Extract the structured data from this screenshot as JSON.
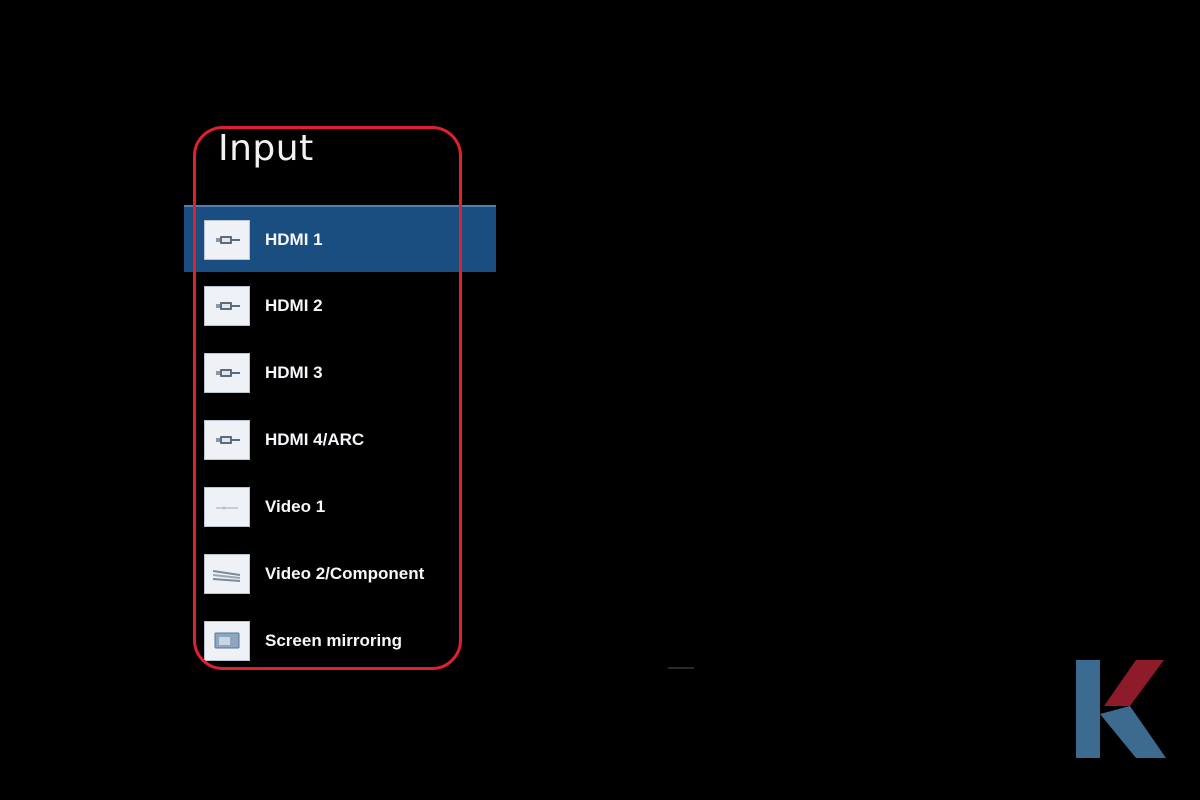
{
  "menu": {
    "title": "Input",
    "selected_index": 0,
    "items": [
      {
        "label": "HDMI 1",
        "icon": "hdmi-port-icon"
      },
      {
        "label": "HDMI 2",
        "icon": "hdmi-port-icon"
      },
      {
        "label": "HDMI 3",
        "icon": "hdmi-port-icon"
      },
      {
        "label": "HDMI 4/ARC",
        "icon": "hdmi-port-icon"
      },
      {
        "label": "Video 1",
        "icon": "composite-video-icon"
      },
      {
        "label": "Video 2/Component",
        "icon": "component-video-icon"
      },
      {
        "label": "Screen mirroring",
        "icon": "screen-mirroring-icon"
      }
    ]
  },
  "colors": {
    "background": "#000000",
    "selected_item": "#1a4d80",
    "highlight_outline": "#e0202c",
    "logo_blue": "#3d6a8f",
    "logo_red": "#8e1b2a"
  },
  "logo": {
    "icon": "k-brand-logo"
  }
}
